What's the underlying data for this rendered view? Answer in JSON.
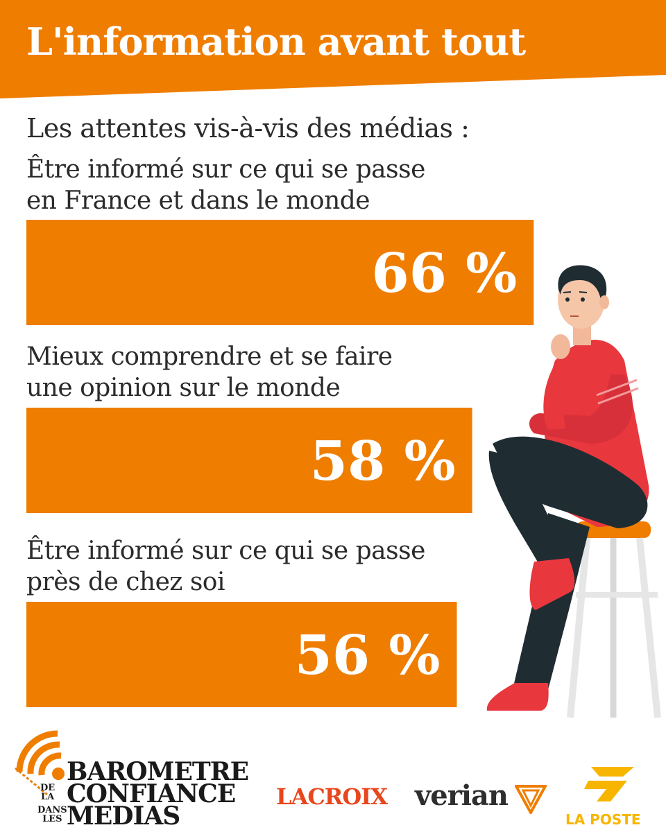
{
  "header": {
    "title": "L'information avant tout"
  },
  "subtitle": "Les attentes vis-à-vis des médias :",
  "colors": {
    "accent": "#ef7d00",
    "text": "#2b2b2b",
    "lacroix": "#e8461c",
    "laposte": "#f7b500"
  },
  "chart_data": {
    "type": "bar",
    "orientation": "horizontal",
    "title": "Les attentes vis-à-vis des médias :",
    "categories": [
      [
        "Être informé sur ce qui se passe",
        "en France et dans le monde"
      ],
      [
        "Mieux comprendre et se faire",
        "une opinion sur le monde"
      ],
      [
        "Être informé sur ce qui se passe",
        "près de chez soi"
      ]
    ],
    "values": [
      66,
      58,
      56
    ],
    "value_labels": [
      "66 %",
      "58 %",
      "56 %"
    ],
    "unit": "%",
    "xlim": [
      0,
      85
    ],
    "grid": false,
    "legend": "none"
  },
  "footer": {
    "barometre": {
      "line1": "BAROMETRE",
      "line2": "CONFIANCE",
      "line3": "MEDIAS",
      "small1": "DE",
      "small2": "LA",
      "small3": "DANS",
      "small4": "LES"
    },
    "lacroix": "LACROIX",
    "verian": "verian",
    "laposte": "LA POSTE"
  },
  "icons": {
    "illustration": "thinking-man-on-stool",
    "barometre_logo": "signal-waves-icon",
    "verian_logo": "v-emblem-icon",
    "laposte_logo": "bird-arrow-icon"
  }
}
